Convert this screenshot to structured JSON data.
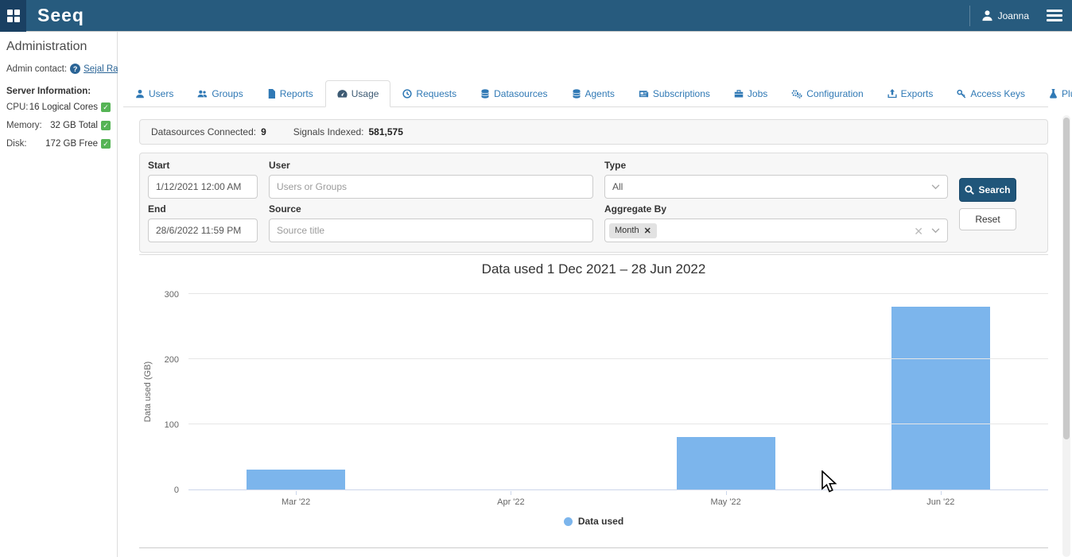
{
  "navbar": {
    "brand": "Seeq",
    "user": "Joanna"
  },
  "sidebar": {
    "title": "Administration",
    "admin_contact_label": "Admin contact:",
    "admin_contact_name": "Sejal Raval",
    "server_info_heading": "Server Information:",
    "server_info": [
      {
        "label": "CPU:",
        "value": "16 Logical Cores",
        "status": "ok"
      },
      {
        "label": "Memory:",
        "value": "32 GB Total",
        "status": "ok"
      },
      {
        "label": "Disk:",
        "value": "172 GB Free",
        "status": "ok"
      }
    ],
    "check_glyph": "✓"
  },
  "tabs": [
    {
      "label": "Users",
      "active": false
    },
    {
      "label": "Groups",
      "active": false
    },
    {
      "label": "Reports",
      "active": false
    },
    {
      "label": "Usage",
      "active": true
    },
    {
      "label": "Requests",
      "active": false
    },
    {
      "label": "Datasources",
      "active": false
    },
    {
      "label": "Agents",
      "active": false
    },
    {
      "label": "Subscriptions",
      "active": false
    },
    {
      "label": "Jobs",
      "active": false
    },
    {
      "label": "Configuration",
      "active": false
    },
    {
      "label": "Exports",
      "active": false
    },
    {
      "label": "Access Keys",
      "active": false
    },
    {
      "label": "Plugins",
      "active": false
    }
  ],
  "stats": {
    "datasources_label": "Datasources Connected:",
    "datasources_value": "9",
    "signals_label": "Signals Indexed:",
    "signals_value": "581,575"
  },
  "filters": {
    "start_label": "Start",
    "start_value": "1/12/2021 12:00 AM",
    "end_label": "End",
    "end_value": "28/6/2022 11:59 PM",
    "user_label": "User",
    "user_placeholder": "Users or Groups",
    "source_label": "Source",
    "source_placeholder": "Source title",
    "type_label": "Type",
    "type_value": "All",
    "aggregate_label": "Aggregate By",
    "aggregate_tag": "Month",
    "tag_remove_glyph": "✕",
    "clear_glyph": "✕",
    "search_label": "Search",
    "reset_label": "Reset"
  },
  "chart_data": {
    "type": "bar",
    "title": "Data used 1 Dec 2021 – 28 Jun 2022",
    "categories": [
      "Mar '22",
      "Apr '22",
      "May '22",
      "Jun '22"
    ],
    "series": [
      {
        "name": "Data used",
        "values": [
          30,
          0,
          80,
          280
        ]
      }
    ],
    "xlabel": "",
    "ylabel": "Data used (GB)",
    "yticks": [
      0,
      100,
      200,
      300
    ],
    "ylim": [
      0,
      300
    ],
    "grid": true,
    "legend_position": "bottom",
    "bar_color": "#7cb5ec"
  },
  "colors": {
    "navbar": "#275B7E",
    "navbar_dark": "#1A4062",
    "accent_blue": "#3079B5",
    "link": "#2A6496",
    "status_ok_green": "#55B455",
    "search_button": "#20567A",
    "bar_fill": "#7cb5ec"
  }
}
